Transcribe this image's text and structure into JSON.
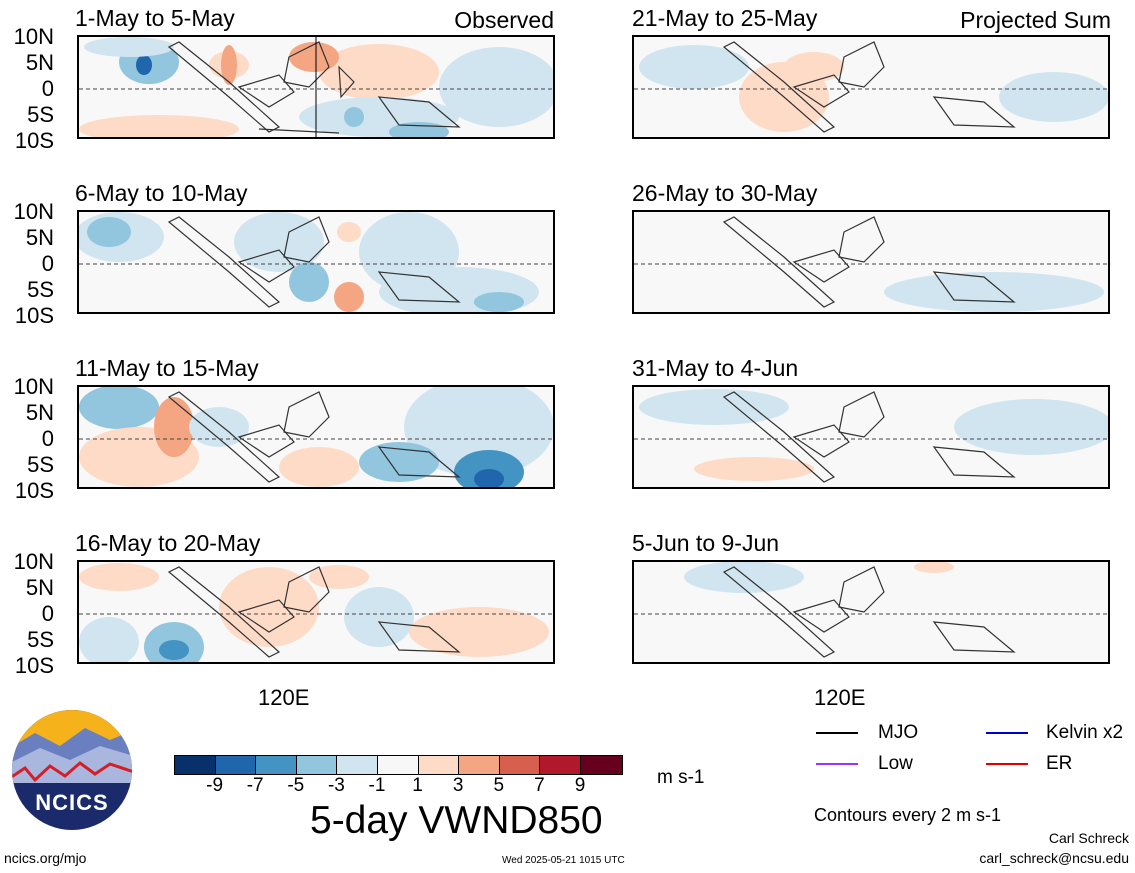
{
  "panels": [
    {
      "title": "1-May to 5-May",
      "tag": "Observed"
    },
    {
      "title": "6-May to 10-May",
      "tag": ""
    },
    {
      "title": "11-May to 15-May",
      "tag": ""
    },
    {
      "title": "16-May to 20-May",
      "tag": ""
    },
    {
      "title": "21-May to 25-May",
      "tag": "Projected Sum"
    },
    {
      "title": "26-May to 30-May",
      "tag": ""
    },
    {
      "title": "31-May to 4-Jun",
      "tag": ""
    },
    {
      "title": "5-Jun to 9-Jun",
      "tag": ""
    }
  ],
  "lat_labels": [
    "10N",
    "5N",
    "0",
    "5S",
    "10S"
  ],
  "lon_label": "120E",
  "colorbar": {
    "colors": [
      "#08306b",
      "#2066ac",
      "#4393c3",
      "#92c5de",
      "#d1e5f0",
      "#f7f7f7",
      "#fddbc7",
      "#f4a582",
      "#d6604d",
      "#b2182b",
      "#67001f"
    ],
    "ticks": [
      "-9",
      "-7",
      "-5",
      "-3",
      "-1",
      "1",
      "3",
      "5",
      "7",
      "9"
    ],
    "units": "m s-1"
  },
  "title": "5-day VWND850",
  "legend": [
    {
      "label": "MJO",
      "color": "#000000"
    },
    {
      "label": "Kelvin x2",
      "color": "#0000cc"
    },
    {
      "label": "Low",
      "color": "#9933ff"
    },
    {
      "label": "ER",
      "color": "#e00000"
    }
  ],
  "contour_note": "Contours every 2 m s-1",
  "logo_text": "NCICS",
  "footer": {
    "url": "ncics.org/mjo",
    "timestamp": "Wed 2025-05-21 1015 UTC",
    "author": "Carl Schreck",
    "email": "carl_schreck@ncsu.edu"
  }
}
